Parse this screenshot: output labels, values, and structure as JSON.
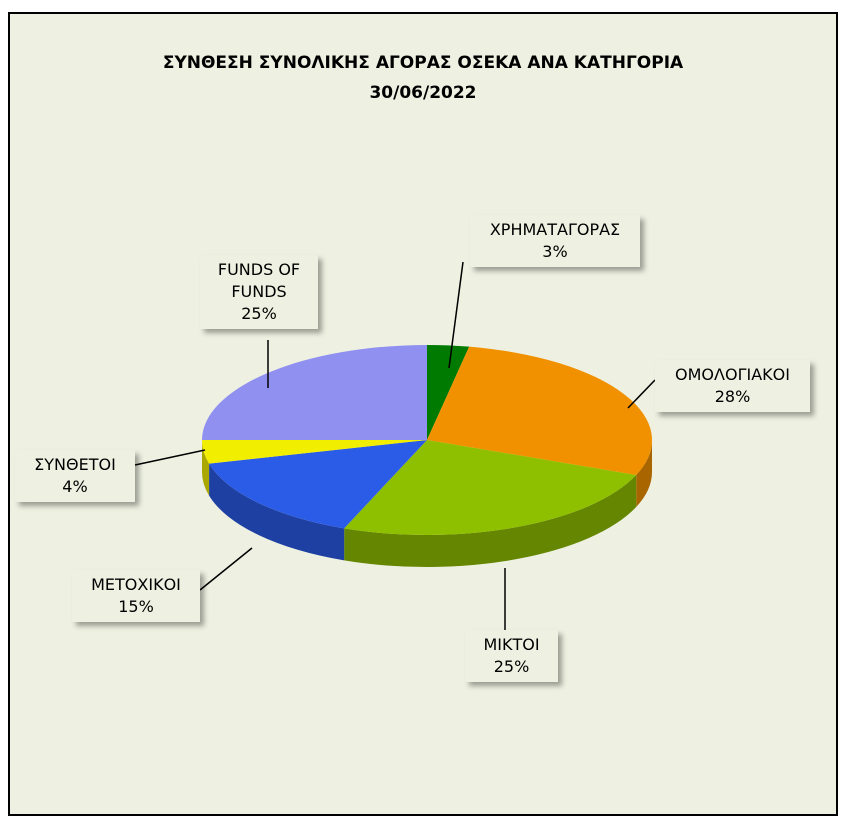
{
  "chart_data": {
    "type": "pie",
    "title": "ΣΥΝΘΕΣΗ ΣΥΝΟΛΙΚΗΣ ΑΓΟΡΑΣ ΟΣΕΚΑ ΑΝΑ ΚΑΤΗΓΟΡΙΑ",
    "subtitle": "30/06/2022",
    "categories": [
      "ΧΡΗΜΑΤΑΓΟΡΑΣ",
      "ΟΜΟΛΟΓΙΑΚΟΙ",
      "ΜΙΚΤΟΙ",
      "ΜΕΤΟΧΙΚΟΙ",
      "ΣΥΝΘΕΤΟΙ",
      "FUNDS OF FUNDS"
    ],
    "values": [
      3,
      28,
      25,
      15,
      4,
      25
    ],
    "value_labels": [
      "3%",
      "28%",
      "25%",
      "15%",
      "4%",
      "25%"
    ],
    "colors": [
      "#007a00",
      "#f29100",
      "#8fc000",
      "#2b5ce8",
      "#f2ee00",
      "#9090f0"
    ]
  }
}
